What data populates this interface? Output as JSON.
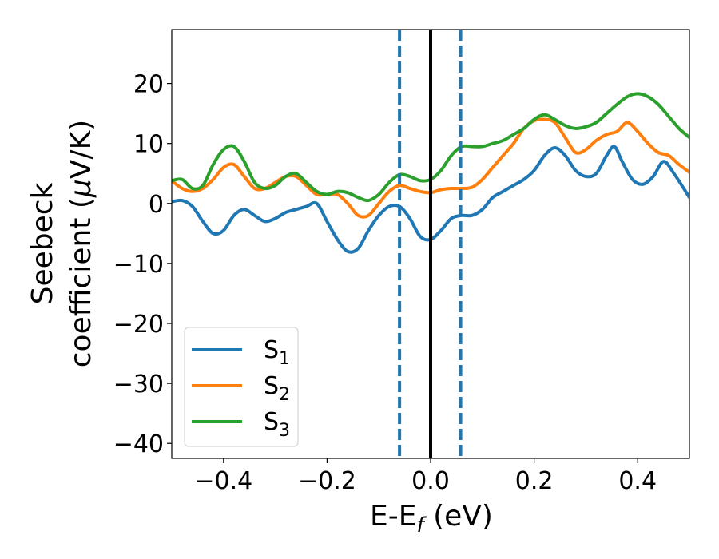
{
  "chart_data": {
    "type": "line",
    "title": "",
    "xlabel": {
      "main": "E-E",
      "sub": "f",
      "unit": "(eV)"
    },
    "ylabel": {
      "line1": "Seebeck",
      "line2_text": "coefficient  (",
      "mu": "μ",
      "line2_unit": "V/K)"
    },
    "xlim": [
      -0.5,
      0.5
    ],
    "ylim": [
      -42.5,
      29
    ],
    "xticks": [
      -0.4,
      -0.2,
      0.0,
      0.2,
      0.4
    ],
    "xtick_labels": [
      "−0.4",
      "−0.2",
      "0.0",
      "0.2",
      "0.4"
    ],
    "yticks": [
      -40,
      -30,
      -20,
      -10,
      0,
      10,
      20
    ],
    "ytick_labels": [
      "−40",
      "−30",
      "−20",
      "−10",
      "0",
      "10",
      "20"
    ],
    "grid": false,
    "legend_position": "lower-left",
    "vertical_lines": [
      {
        "x": -0.06,
        "style": "dashed",
        "color": "#1f77b4"
      },
      {
        "x": 0.0,
        "style": "solid",
        "color": "#000000"
      },
      {
        "x": 0.058,
        "style": "dashed",
        "color": "#1f77b4"
      }
    ],
    "series": [
      {
        "name": "S",
        "sub": "1",
        "color": "#1f77b4",
        "x": [
          -0.5,
          -0.48,
          -0.46,
          -0.44,
          -0.42,
          -0.4,
          -0.38,
          -0.36,
          -0.34,
          -0.32,
          -0.3,
          -0.28,
          -0.26,
          -0.24,
          -0.22,
          -0.2,
          -0.18,
          -0.16,
          -0.14,
          -0.12,
          -0.1,
          -0.08,
          -0.06,
          -0.04,
          -0.02,
          0.0,
          0.02,
          0.04,
          0.06,
          0.08,
          0.1,
          0.12,
          0.14,
          0.16,
          0.18,
          0.2,
          0.22,
          0.24,
          0.26,
          0.28,
          0.3,
          0.32,
          0.34,
          0.355,
          0.37,
          0.39,
          0.41,
          0.43,
          0.45,
          0.47,
          0.5
        ],
        "y": [
          0.3,
          0.5,
          -0.5,
          -3,
          -5,
          -4.5,
          -2,
          -1,
          -2,
          -3,
          -2.5,
          -1.5,
          -1,
          -0.5,
          0,
          -3,
          -6,
          -8,
          -7.5,
          -4.5,
          -2,
          -0.5,
          -0.5,
          -2.5,
          -5.5,
          -6,
          -4.5,
          -2.5,
          -2,
          -2,
          -1,
          1,
          2,
          3,
          4,
          5.5,
          8,
          9.3,
          8,
          5.5,
          4.5,
          5,
          8,
          9.5,
          7,
          4,
          3.2,
          4.5,
          7,
          5,
          1
        ]
      },
      {
        "name": "S",
        "sub": "2",
        "color": "#ff7f0e",
        "x": [
          -0.5,
          -0.48,
          -0.46,
          -0.44,
          -0.42,
          -0.4,
          -0.38,
          -0.36,
          -0.34,
          -0.32,
          -0.3,
          -0.28,
          -0.26,
          -0.24,
          -0.22,
          -0.2,
          -0.18,
          -0.16,
          -0.14,
          -0.12,
          -0.1,
          -0.08,
          -0.06,
          -0.04,
          -0.02,
          0.0,
          0.02,
          0.04,
          0.06,
          0.08,
          0.1,
          0.12,
          0.14,
          0.16,
          0.18,
          0.2,
          0.22,
          0.24,
          0.26,
          0.28,
          0.3,
          0.32,
          0.34,
          0.36,
          0.38,
          0.4,
          0.42,
          0.44,
          0.46,
          0.48,
          0.5
        ],
        "y": [
          3.8,
          2.5,
          2,
          2.5,
          4,
          6,
          6.5,
          4.5,
          2.5,
          2.5,
          3.5,
          4.5,
          4.5,
          3,
          1.5,
          1.5,
          1.5,
          0,
          -2,
          -2,
          0,
          2,
          3,
          2.5,
          2,
          1.8,
          2.3,
          2.5,
          2.5,
          2.7,
          4,
          6,
          8,
          10,
          12.5,
          13.8,
          14,
          13.5,
          11,
          8.5,
          9,
          10.5,
          11.5,
          12,
          13.5,
          12,
          10,
          8.5,
          8,
          6.5,
          5.2
        ]
      },
      {
        "name": "S",
        "sub": "3",
        "color": "#2ca02c",
        "x": [
          -0.5,
          -0.48,
          -0.46,
          -0.44,
          -0.42,
          -0.4,
          -0.38,
          -0.36,
          -0.34,
          -0.32,
          -0.3,
          -0.28,
          -0.26,
          -0.24,
          -0.22,
          -0.2,
          -0.18,
          -0.16,
          -0.14,
          -0.12,
          -0.1,
          -0.08,
          -0.06,
          -0.04,
          -0.02,
          0.0,
          0.02,
          0.04,
          0.06,
          0.08,
          0.1,
          0.12,
          0.14,
          0.16,
          0.18,
          0.2,
          0.22,
          0.24,
          0.26,
          0.28,
          0.3,
          0.32,
          0.34,
          0.36,
          0.38,
          0.4,
          0.42,
          0.44,
          0.46,
          0.48,
          0.5
        ],
        "y": [
          3.8,
          4,
          2.5,
          3,
          6.5,
          9,
          9.5,
          7,
          3.5,
          2.5,
          3,
          4.5,
          5,
          3.5,
          2,
          1.5,
          2,
          1.8,
          1,
          0.5,
          1.5,
          3.5,
          4.8,
          4.5,
          3.8,
          4,
          5.5,
          8,
          9.5,
          9.5,
          9.5,
          10,
          10.5,
          11.5,
          12.5,
          14,
          14.8,
          14,
          13,
          12.5,
          12.8,
          13.5,
          15,
          16.5,
          17.8,
          18.3,
          17.8,
          16.5,
          14.5,
          12.5,
          11
        ]
      }
    ]
  }
}
